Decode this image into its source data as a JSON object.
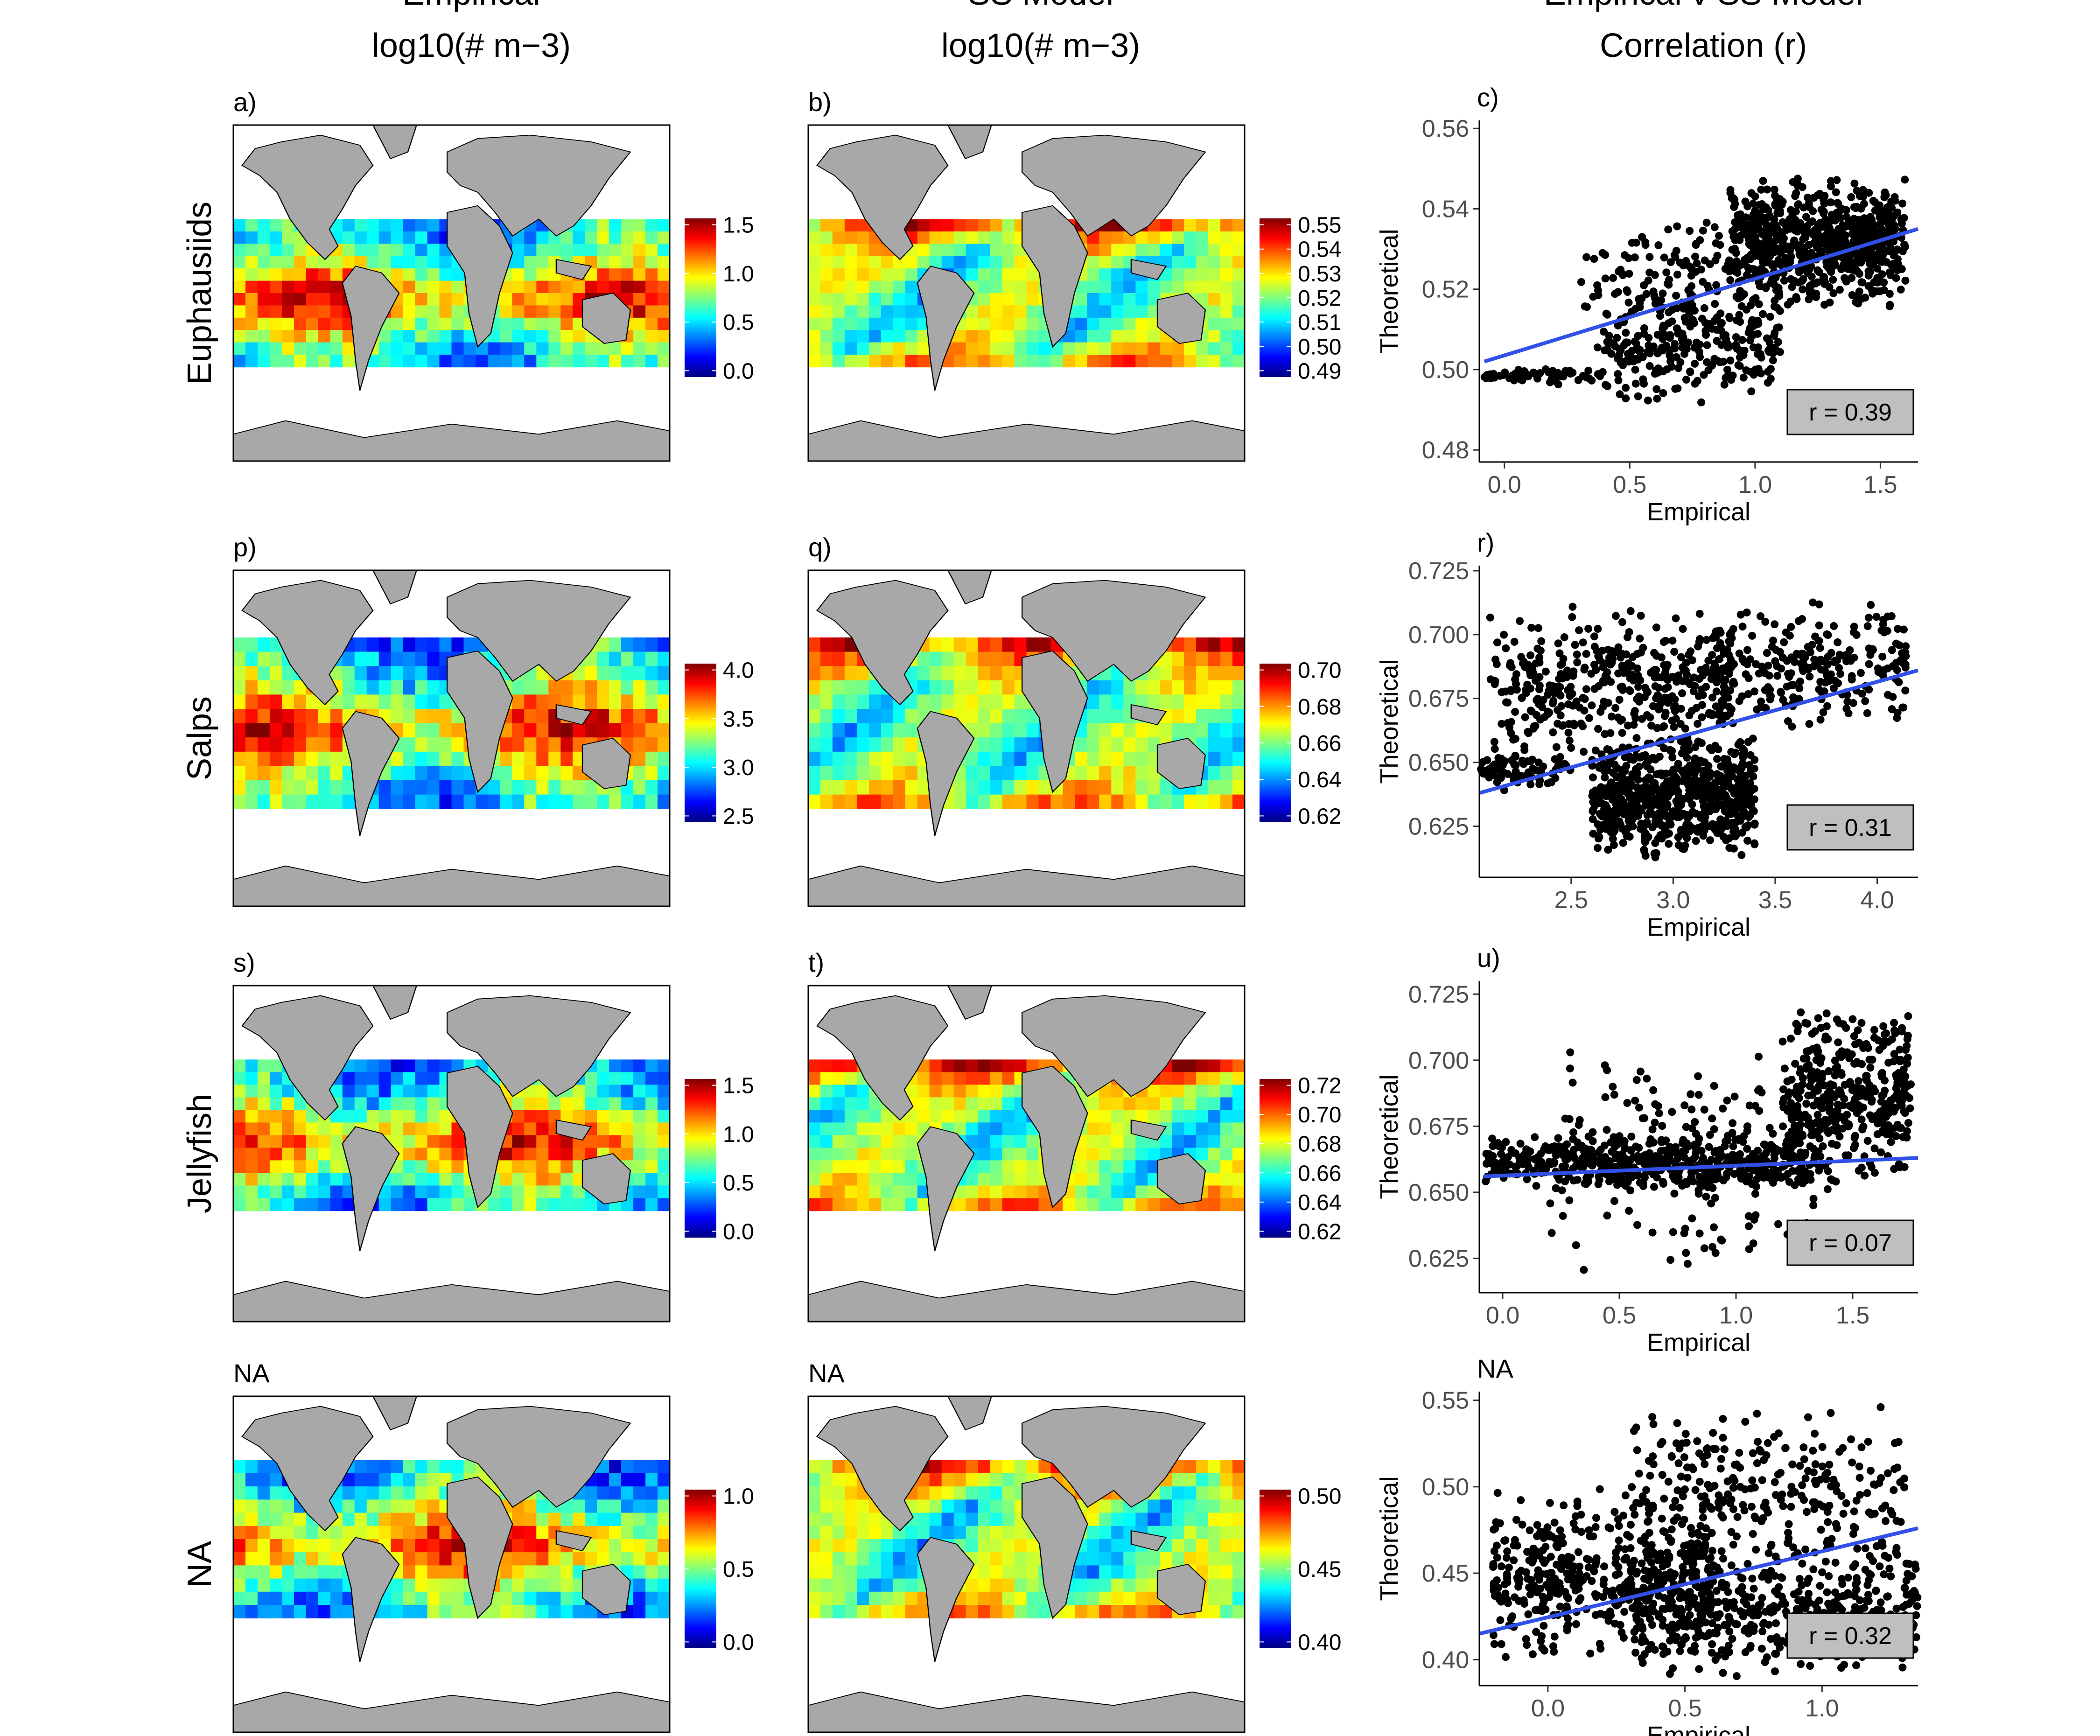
{
  "header": {
    "col1_title": "Empirical",
    "col1_units": "log10(# m−3)",
    "col2_title": "SS Model",
    "col2_units": "log10(# m−3)",
    "col3_title": "Empirical v SS Model",
    "col3_units": "Correlation (r)"
  },
  "colormap": [
    "#00007f",
    "#0000ff",
    "#007fff",
    "#00ffff",
    "#7fff7f",
    "#ffff00",
    "#ff7f00",
    "#ff0000",
    "#7f0000"
  ],
  "land_color": "#a8a8a8",
  "fit_color": "#3050e8",
  "rows": [
    {
      "row_label": "Euphausiids",
      "emp_map": {
        "panel": "a)",
        "cb_ticks": [
          "1.5",
          "1.0",
          "0.5",
          "0.0"
        ]
      },
      "mod_map": {
        "panel": "b)",
        "cb_ticks": [
          "0.55",
          "0.54",
          "0.53",
          "0.52",
          "0.51",
          "0.50",
          "0.49"
        ]
      }
    },
    {
      "row_label": "Salps",
      "emp_map": {
        "panel": "p)",
        "cb_ticks": [
          "4.0",
          "3.5",
          "3.0",
          "2.5"
        ]
      },
      "mod_map": {
        "panel": "q)",
        "cb_ticks": [
          "0.70",
          "0.68",
          "0.66",
          "0.64",
          "0.62"
        ]
      }
    },
    {
      "row_label": "Jellyfish",
      "emp_map": {
        "panel": "s)",
        "cb_ticks": [
          "1.5",
          "1.0",
          "0.5",
          "0.0"
        ]
      },
      "mod_map": {
        "panel": "t)",
        "cb_ticks": [
          "0.72",
          "0.70",
          "0.68",
          "0.66",
          "0.64",
          "0.62"
        ]
      }
    },
    {
      "row_label": "NA",
      "emp_map": {
        "panel": "NA",
        "cb_ticks": [
          "1.0",
          "0.5",
          "0.0"
        ]
      },
      "mod_map": {
        "panel": "NA",
        "cb_ticks": [
          "0.50",
          "0.45",
          "0.40"
        ]
      }
    }
  ],
  "chart_data": [
    {
      "type": "scatter",
      "panel": "c)",
      "xlabel": "Empirical",
      "ylabel": "Theoretical",
      "xlim": [
        -0.1,
        1.65
      ],
      "ylim": [
        0.477,
        0.562
      ],
      "xticks": [
        "0.0",
        "0.5",
        "1.0",
        "1.5"
      ],
      "yticks": [
        "0.56",
        "0.54",
        "0.52",
        "0.50",
        "0.48"
      ],
      "r_label": "r = 0.39",
      "fit": {
        "x": [
          -0.08,
          1.65
        ],
        "y": [
          0.502,
          0.535
        ]
      },
      "clusters": [
        {
          "x": [
            0.9,
            1.6
          ],
          "y": [
            0.515,
            0.548
          ],
          "n": 700
        },
        {
          "x": [
            0.4,
            1.1
          ],
          "y": [
            0.49,
            0.52
          ],
          "n": 250
        },
        {
          "x": [
            -0.08,
            0.4
          ],
          "y": [
            0.496,
            0.501
          ],
          "n": 60
        },
        {
          "x": [
            0.3,
            0.9
          ],
          "y": [
            0.505,
            0.54
          ],
          "n": 120
        }
      ]
    },
    {
      "type": "scatter",
      "panel": "r)",
      "xlabel": "Empirical",
      "ylabel": "Theoretical",
      "xlim": [
        2.05,
        4.2
      ],
      "ylim": [
        0.605,
        0.727
      ],
      "xticks": [
        "2.5",
        "3.0",
        "3.5",
        "4.0"
      ],
      "yticks": [
        "0.725",
        "0.700",
        "0.675",
        "0.650",
        "0.625"
      ],
      "r_label": "r = 0.31",
      "fit": {
        "x": [
          2.05,
          4.2
        ],
        "y": [
          0.638,
          0.686
        ]
      },
      "clusters": [
        {
          "x": [
            2.1,
            3.3
          ],
          "y": [
            0.65,
            0.712
          ],
          "n": 420
        },
        {
          "x": [
            2.6,
            3.4
          ],
          "y": [
            0.612,
            0.66
          ],
          "n": 700
        },
        {
          "x": [
            3.2,
            4.15
          ],
          "y": [
            0.66,
            0.714
          ],
          "n": 250
        },
        {
          "x": [
            2.05,
            2.5
          ],
          "y": [
            0.638,
            0.655
          ],
          "n": 80
        }
      ]
    },
    {
      "type": "scatter",
      "panel": "u)",
      "xlabel": "Empirical",
      "ylabel": "Theoretical",
      "xlim": [
        -0.1,
        1.78
      ],
      "ylim": [
        0.612,
        0.73
      ],
      "xticks": [
        "0.0",
        "0.5",
        "1.0",
        "1.5"
      ],
      "yticks": [
        "0.725",
        "0.700",
        "0.675",
        "0.650",
        "0.625"
      ],
      "r_label": "r = 0.07",
      "fit": {
        "x": [
          -0.08,
          1.78
        ],
        "y": [
          0.656,
          0.663
        ]
      },
      "clusters": [
        {
          "x": [
            -0.08,
            1.3
          ],
          "y": [
            0.65,
            0.672
          ],
          "n": 500
        },
        {
          "x": [
            1.2,
            1.75
          ],
          "y": [
            0.65,
            0.722
          ],
          "n": 400
        },
        {
          "x": [
            0.2,
            1.4
          ],
          "y": [
            0.615,
            0.712
          ],
          "n": 200
        }
      ]
    },
    {
      "type": "scatter",
      "panel": "NA",
      "xlabel": "Empirical",
      "ylabel": "Theoretical",
      "xlim": [
        -0.25,
        1.35
      ],
      "ylim": [
        0.385,
        0.555
      ],
      "xticks": [
        "0.0",
        "0.5",
        "1.0"
      ],
      "yticks": [
        "0.55",
        "0.50",
        "0.45",
        "0.40"
      ],
      "r_label": "r = 0.32",
      "fit": {
        "x": [
          -0.25,
          1.35
        ],
        "y": [
          0.415,
          0.476
        ]
      },
      "clusters": [
        {
          "x": [
            -0.2,
            0.6
          ],
          "y": [
            0.395,
            0.5
          ],
          "n": 450
        },
        {
          "x": [
            0.3,
            1.35
          ],
          "y": [
            0.39,
            0.47
          ],
          "n": 500
        },
        {
          "x": [
            0.3,
            1.3
          ],
          "y": [
            0.45,
            0.55
          ],
          "n": 250
        }
      ]
    }
  ]
}
